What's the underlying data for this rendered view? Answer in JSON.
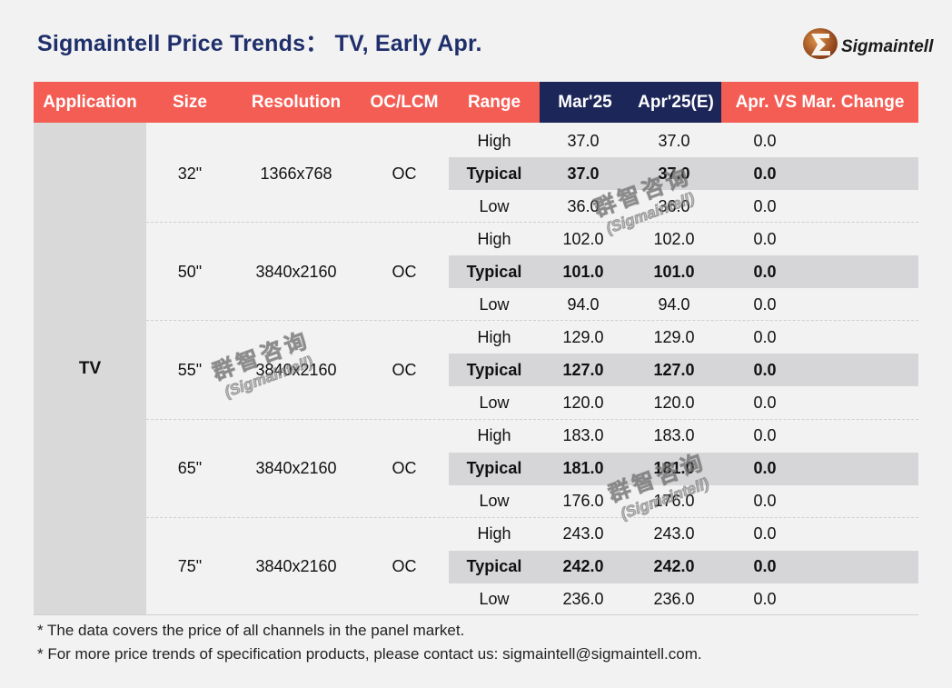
{
  "title": "Sigmaintell Price Trends： TV, Early Apr.",
  "logo": {
    "icon": "sigma-swoosh-logo",
    "text": "Sigmaintell"
  },
  "headers": [
    "Application",
    "Size",
    "Resolution",
    "OC/LCM",
    "Range",
    "Mar'25",
    "Apr'25(E)",
    "Apr. VS Mar. Change"
  ],
  "application": "TV",
  "groups": [
    {
      "size": "32\"",
      "resolution": "1366x768",
      "oclcm": "OC",
      "rows": [
        {
          "range": "High",
          "mar": "37.0",
          "apr": "37.0",
          "change": "0.0"
        },
        {
          "range": "Typical",
          "mar": "37.0",
          "apr": "37.0",
          "change": "0.0"
        },
        {
          "range": "Low",
          "mar": "36.0",
          "apr": "36.0",
          "change": "0.0"
        }
      ]
    },
    {
      "size": "50\"",
      "resolution": "3840x2160",
      "oclcm": "OC",
      "rows": [
        {
          "range": "High",
          "mar": "102.0",
          "apr": "102.0",
          "change": "0.0"
        },
        {
          "range": "Typical",
          "mar": "101.0",
          "apr": "101.0",
          "change": "0.0"
        },
        {
          "range": "Low",
          "mar": "94.0",
          "apr": "94.0",
          "change": "0.0"
        }
      ]
    },
    {
      "size": "55\"",
      "resolution": "3840x2160",
      "oclcm": "OC",
      "rows": [
        {
          "range": "High",
          "mar": "129.0",
          "apr": "129.0",
          "change": "0.0"
        },
        {
          "range": "Typical",
          "mar": "127.0",
          "apr": "127.0",
          "change": "0.0"
        },
        {
          "range": "Low",
          "mar": "120.0",
          "apr": "120.0",
          "change": "0.0"
        }
      ]
    },
    {
      "size": "65\"",
      "resolution": "3840x2160",
      "oclcm": "OC",
      "rows": [
        {
          "range": "High",
          "mar": "183.0",
          "apr": "183.0",
          "change": "0.0"
        },
        {
          "range": "Typical",
          "mar": "181.0",
          "apr": "181.0",
          "change": "0.0"
        },
        {
          "range": "Low",
          "mar": "176.0",
          "apr": "176.0",
          "change": "0.0"
        }
      ]
    },
    {
      "size": "75\"",
      "resolution": "3840x2160",
      "oclcm": "OC",
      "rows": [
        {
          "range": "High",
          "mar": "243.0",
          "apr": "243.0",
          "change": "0.0"
        },
        {
          "range": "Typical",
          "mar": "242.0",
          "apr": "242.0",
          "change": "0.0"
        },
        {
          "range": "Low",
          "mar": "236.0",
          "apr": "236.0",
          "change": "0.0"
        }
      ]
    }
  ],
  "notes": [
    "* The data covers the price of all channels in the panel market.",
    "* For more price trends of specification products, please contact us: sigmaintell@sigmaintell.com."
  ],
  "watermark": {
    "line1": "群智咨询",
    "line2": "(Sigmaintell)"
  },
  "colors": {
    "header": "#f45d54",
    "header_dark": "#1c2658",
    "title": "#1f2f6b",
    "typical_row": "#d6d6d9",
    "app_column": "#d9d9d9"
  }
}
